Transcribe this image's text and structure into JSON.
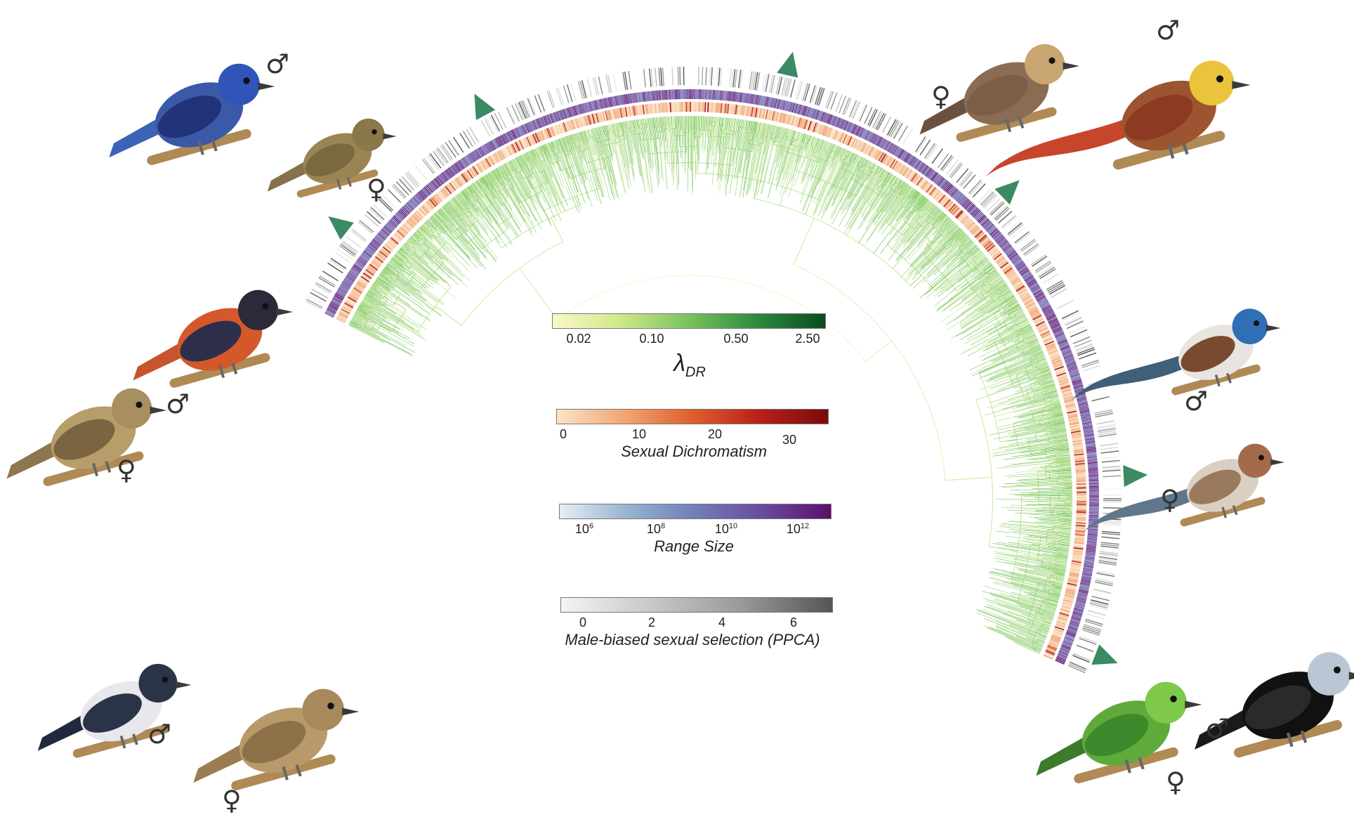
{
  "legends": {
    "lambda": {
      "symbol": "λ",
      "subscript": "DR",
      "ticks": [
        "0.02",
        "0.10",
        "0.50",
        "2.50"
      ],
      "colors": [
        "#fbf9c8",
        "#cfe88a",
        "#78c25e",
        "#2e8a3e",
        "#0d4a22"
      ]
    },
    "dichromatism": {
      "title": "Sexual Dichromatism",
      "ticks": [
        "0",
        "10",
        "20",
        "30"
      ],
      "colors": [
        "#fbe3c8",
        "#f1a671",
        "#dd5f2c",
        "#b81f1a",
        "#7a0b0b"
      ]
    },
    "range": {
      "title": "Range Size",
      "ticks": [
        {
          "base": "10",
          "exp": "6"
        },
        {
          "base": "10",
          "exp": "8"
        },
        {
          "base": "10",
          "exp": "10"
        },
        {
          "base": "10",
          "exp": "12"
        }
      ],
      "colors": [
        "#e6eef5",
        "#97b3cf",
        "#6f7fb7",
        "#6a4aa0",
        "#5c0f6a"
      ]
    },
    "ppca": {
      "title": "Male-biased sexual selection (PPCA)",
      "ticks": [
        "0",
        "2",
        "4",
        "6"
      ],
      "colors": [
        "#f4f4f4",
        "#c8c8c8",
        "#999999",
        "#555555"
      ]
    }
  },
  "sex_symbols": {
    "male": "♂",
    "female": "♀"
  },
  "birds": [
    {
      "name": "blue-flycatcher-male",
      "sex": "male",
      "icon": "songbird"
    },
    {
      "name": "brown-flycatcher-female",
      "sex": "female",
      "icon": "songbird"
    },
    {
      "name": "red-bishop-male",
      "sex": "male",
      "icon": "finch"
    },
    {
      "name": "streaked-bishop-female",
      "sex": "female",
      "icon": "finch"
    },
    {
      "name": "seedeater-male",
      "sex": "male",
      "icon": "finch"
    },
    {
      "name": "seedeater-female",
      "sex": "female",
      "icon": "finch"
    },
    {
      "name": "bird-of-paradise-female",
      "sex": "female",
      "icon": "bird-of-paradise"
    },
    {
      "name": "bird-of-paradise-male",
      "sex": "male",
      "icon": "bird-of-paradise"
    },
    {
      "name": "fairywren-male",
      "sex": "male",
      "icon": "wren"
    },
    {
      "name": "fairywren-female",
      "sex": "female",
      "icon": "wren"
    },
    {
      "name": "manakin-female",
      "sex": "female",
      "icon": "manakin"
    },
    {
      "name": "manakin-male",
      "sex": "male",
      "icon": "manakin"
    }
  ],
  "colors": {
    "marker": "#3a8a63",
    "tree_base": "#f3f7c4",
    "tree_tip": "#8fd070"
  }
}
